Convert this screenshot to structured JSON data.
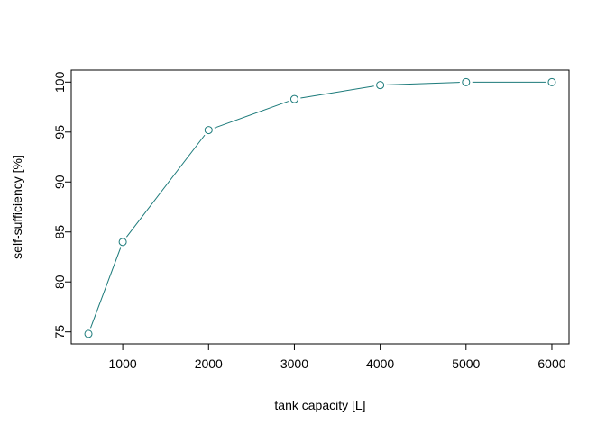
{
  "chart_data": {
    "type": "line",
    "title": "",
    "xlabel": "tank capacity [L]",
    "ylabel": "self-sufficiency [%]",
    "x": [
      600,
      1000,
      2000,
      3000,
      4000,
      5000,
      6000
    ],
    "series": [
      {
        "values": [
          74.8,
          84.0,
          95.2,
          98.3,
          99.7,
          100.0,
          100.0
        ],
        "color": "#1b7a7a"
      }
    ],
    "xlim": [
      400,
      6200
    ],
    "ylim": [
      73.8,
      101.2
    ],
    "xticks": [
      1000,
      2000,
      3000,
      4000,
      5000,
      6000
    ],
    "yticks": [
      75,
      80,
      85,
      90,
      95,
      100
    ],
    "marker": "open-circle",
    "grid": false,
    "legend": "none"
  }
}
